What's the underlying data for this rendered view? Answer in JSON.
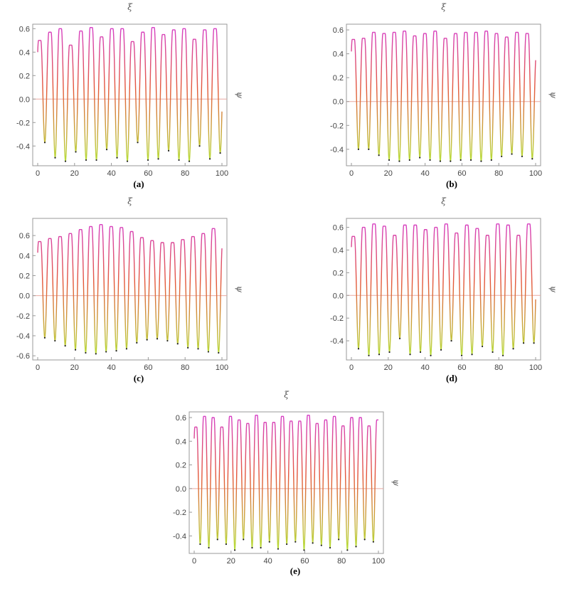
{
  "colors": {
    "top": "#d63fc9",
    "mid": "#e4573a",
    "bottom": "#b6e33a",
    "zero_line": "#e8a8a0",
    "frame": "#999999",
    "marker": "#222222"
  },
  "chart_data": [
    {
      "type": "line",
      "caption": "(a)",
      "title": "ξ",
      "xlabel": "ξ",
      "ylabel": "ψ",
      "xlim": [
        0,
        100
      ],
      "ylim": [
        -0.55,
        0.62
      ],
      "xticks": [
        0,
        20,
        40,
        60,
        80,
        100
      ],
      "xtick_labels": [
        "0",
        "20",
        "40",
        "60",
        "80",
        "100"
      ],
      "yticks": [
        -0.4,
        -0.2,
        0.0,
        0.2,
        0.4,
        0.6
      ],
      "ytick_labels": [
        "-0.4",
        "-0.2",
        "0.0",
        "0.2",
        "0.4",
        "0.6"
      ],
      "series": [
        {
          "period": 5.6,
          "x_start": 0,
          "x_end": 100,
          "peaks": [
            0.5,
            0.57,
            0.6,
            0.46,
            0.58,
            0.61,
            0.53,
            0.6,
            0.6,
            0.49,
            0.57,
            0.61,
            0.55,
            0.59,
            0.6,
            0.51,
            0.59,
            0.6,
            0.45
          ],
          "troughs": [
            -0.37,
            -0.5,
            -0.53,
            -0.45,
            -0.52,
            -0.52,
            -0.43,
            -0.5,
            -0.53,
            -0.37,
            -0.52,
            -0.51,
            -0.44,
            -0.52,
            -0.53,
            -0.4,
            -0.51,
            -0.46,
            -0.5
          ]
        }
      ]
    },
    {
      "type": "line",
      "caption": "(b)",
      "title": "ξ",
      "xlabel": "ξ",
      "ylabel": "ψ",
      "xlim": [
        0,
        100
      ],
      "ylim": [
        -0.52,
        0.63
      ],
      "xticks": [
        0,
        20,
        40,
        60,
        80,
        100
      ],
      "xtick_labels": [
        "0",
        "20",
        "40",
        "60",
        "80",
        "100"
      ],
      "yticks": [
        -0.4,
        -0.2,
        0.0,
        0.2,
        0.4,
        0.6
      ],
      "ytick_labels": [
        "-0.4",
        "-0.2",
        "0.0",
        "0.2",
        "0.4",
        "0.6"
      ],
      "series": [
        {
          "period": 5.55,
          "x_start": 0,
          "x_end": 100,
          "peaks": [
            0.52,
            0.53,
            0.58,
            0.57,
            0.58,
            0.59,
            0.55,
            0.57,
            0.59,
            0.53,
            0.57,
            0.58,
            0.58,
            0.59,
            0.57,
            0.54,
            0.58,
            0.57,
            0.4
          ],
          "troughs": [
            -0.4,
            -0.4,
            -0.45,
            -0.49,
            -0.5,
            -0.49,
            -0.47,
            -0.49,
            -0.5,
            -0.5,
            -0.49,
            -0.49,
            -0.5,
            -0.49,
            -0.46,
            -0.44,
            -0.46,
            -0.48
          ]
        }
      ]
    },
    {
      "type": "line",
      "caption": "(c)",
      "title": "ξ",
      "xlabel": "ξ",
      "ylabel": "ψ",
      "xlim": [
        0,
        100
      ],
      "ylim": [
        -0.62,
        0.75
      ],
      "xticks": [
        0,
        20,
        40,
        60,
        80,
        100
      ],
      "xtick_labels": [
        "0",
        "20",
        "40",
        "60",
        "80",
        "100"
      ],
      "yticks": [
        -0.6,
        -0.4,
        -0.2,
        0.0,
        0.2,
        0.4,
        0.6
      ],
      "ytick_labels": [
        "-0.6",
        "-0.4",
        "-0.2",
        "0.0",
        "0.2",
        "0.4",
        "0.6"
      ],
      "series": [
        {
          "period": 5.55,
          "x_start": 0,
          "x_end": 100,
          "peaks": [
            0.54,
            0.57,
            0.59,
            0.62,
            0.66,
            0.69,
            0.71,
            0.69,
            0.68,
            0.64,
            0.58,
            0.55,
            0.53,
            0.53,
            0.56,
            0.59,
            0.62,
            0.67
          ],
          "troughs": [
            -0.42,
            -0.45,
            -0.5,
            -0.54,
            -0.57,
            -0.58,
            -0.56,
            -0.55,
            -0.53,
            -0.47,
            -0.44,
            -0.43,
            -0.45,
            -0.48,
            -0.52,
            -0.53,
            -0.56,
            -0.57
          ]
        }
      ]
    },
    {
      "type": "line",
      "caption": "(d)",
      "title": "ξ",
      "xlabel": "ξ",
      "ylabel": "ψ",
      "xlim": [
        0,
        100
      ],
      "ylim": [
        -0.55,
        0.66
      ],
      "xticks": [
        0,
        20,
        40,
        60,
        80,
        100
      ],
      "xtick_labels": [
        "0",
        "20",
        "40",
        "60",
        "80",
        "100"
      ],
      "yticks": [
        -0.4,
        -0.2,
        0.0,
        0.2,
        0.4,
        0.6
      ],
      "ytick_labels": [
        "-0.4",
        "-0.2",
        "0.0",
        "0.2",
        "0.4",
        "0.6"
      ],
      "series": [
        {
          "period": 5.6,
          "x_start": 0,
          "x_end": 100,
          "peaks": [
            0.52,
            0.6,
            0.63,
            0.61,
            0.53,
            0.62,
            0.62,
            0.58,
            0.6,
            0.63,
            0.55,
            0.62,
            0.59,
            0.53,
            0.63,
            0.62,
            0.53,
            0.63,
            0.57
          ],
          "troughs": [
            -0.47,
            -0.53,
            -0.52,
            -0.5,
            -0.38,
            -0.52,
            -0.5,
            -0.53,
            -0.48,
            -0.4,
            -0.53,
            -0.52,
            -0.45,
            -0.5,
            -0.53,
            -0.47,
            -0.42,
            -0.42
          ]
        }
      ]
    },
    {
      "type": "line",
      "caption": "(e)",
      "title": "ξ",
      "xlabel": "ξ",
      "ylabel": "ψ",
      "xlim": [
        0,
        100
      ],
      "ylim": [
        -0.53,
        0.63
      ],
      "xticks": [
        0,
        20,
        40,
        60,
        80,
        100
      ],
      "xtick_labels": [
        "0",
        "20",
        "40",
        "60",
        "80",
        "100"
      ],
      "yticks": [
        -0.4,
        -0.2,
        0.0,
        0.2,
        0.4,
        0.6
      ],
      "ytick_labels": [
        "-0.4",
        "-0.2",
        "0.0",
        "0.2",
        "0.4",
        "0.6"
      ],
      "series": [
        {
          "period": 4.7,
          "x_start": 0,
          "x_end": 100,
          "peaks": [
            0.52,
            0.61,
            0.6,
            0.52,
            0.61,
            0.58,
            0.55,
            0.62,
            0.56,
            0.56,
            0.61,
            0.57,
            0.57,
            0.62,
            0.55,
            0.58,
            0.61,
            0.53,
            0.6,
            0.6,
            0.53,
            0.58
          ],
          "troughs": [
            -0.47,
            -0.5,
            -0.43,
            -0.47,
            -0.52,
            -0.43,
            -0.5,
            -0.5,
            -0.45,
            -0.51,
            -0.47,
            -0.45,
            -0.52,
            -0.46,
            -0.48,
            -0.5,
            -0.43,
            -0.52,
            -0.49,
            -0.43,
            -0.45
          ]
        }
      ]
    }
  ]
}
